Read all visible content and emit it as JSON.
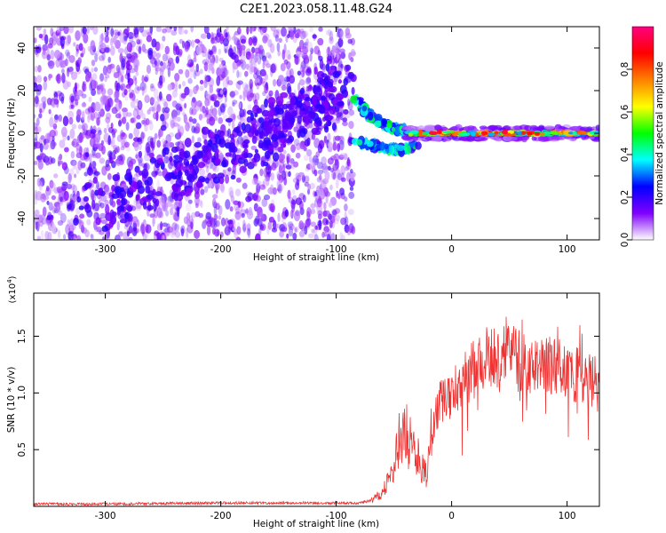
{
  "title": "C2E1.2023.058.11.48.G24",
  "chart_data": [
    {
      "type": "heatmap",
      "xlabel": "Height of straight line (km)",
      "ylabel": "Frequency (Hz)",
      "xlim": [
        -362,
        128
      ],
      "ylim": [
        -50,
        50
      ],
      "x_ticks": [
        -300,
        -200,
        -100,
        0,
        100
      ],
      "y_ticks": [
        -40,
        -20,
        0,
        20,
        40
      ],
      "colorbar": {
        "label": "Normalized spectral amplitude",
        "range": [
          0.0,
          1.0
        ],
        "ticks": [
          0.0,
          0.2,
          0.4,
          0.6,
          0.8
        ],
        "colors": [
          "#ffffff",
          "#8000ff",
          "#0000ff",
          "#00ffff",
          "#00ff00",
          "#ffff00",
          "#ff8000",
          "#ff0000",
          "#ff0080"
        ]
      },
      "features": {
        "diffuse_region_x": [
          -362,
          -85
        ],
        "diagonal_track": [
          [
            -320,
            -38
          ],
          [
            -250,
            -22
          ],
          [
            -200,
            -10
          ],
          [
            -150,
            3
          ],
          [
            -120,
            12
          ],
          [
            -95,
            22
          ]
        ],
        "converging_tracks": [
          [
            [
              -85,
              17
            ],
            [
              -70,
              8
            ],
            [
              -55,
              3
            ],
            [
              -40,
              1
            ]
          ],
          [
            [
              -85,
              -4
            ],
            [
              -65,
              -6
            ],
            [
              -45,
              -8
            ],
            [
              -30,
              -5
            ]
          ]
        ],
        "carrier_line": {
          "frequency": 0,
          "x_range": [
            -40,
            128
          ],
          "peak_amplitude": 0.95
        }
      },
      "grid": false
    },
    {
      "type": "line",
      "xlabel": "Height of straight line (km)",
      "ylabel": "SNR (10 * v/v)",
      "y_multiplier": "(x10^4)",
      "xlim": [
        -362,
        128
      ],
      "ylim": [
        0,
        1.88
      ],
      "x_ticks": [
        -300,
        -200,
        -100,
        0,
        100
      ],
      "y_ticks": [
        0.5,
        1.0,
        1.5
      ],
      "y_tick_labels": [
        "0.5",
        "1.0",
        "1.5"
      ],
      "series": [
        {
          "color": "#ee3333",
          "x": [
            -362,
            -300,
            -200,
            -100,
            -80,
            -70,
            -60,
            -52,
            -48,
            -45,
            -42,
            -38,
            -30,
            -25,
            -22,
            -18,
            -15,
            -10,
            0,
            10,
            20,
            30,
            40,
            50,
            60,
            70,
            80,
            90,
            100,
            110,
            120,
            128
          ],
          "y": [
            0.02,
            0.02,
            0.03,
            0.03,
            0.03,
            0.05,
            0.12,
            0.28,
            0.45,
            0.6,
            0.72,
            0.6,
            0.45,
            0.35,
            0.3,
            0.58,
            0.82,
            0.92,
            1.0,
            1.12,
            1.22,
            1.3,
            1.33,
            1.32,
            1.28,
            1.2,
            1.22,
            1.25,
            1.18,
            1.15,
            1.1,
            1.05
          ]
        }
      ],
      "grid": false
    }
  ]
}
